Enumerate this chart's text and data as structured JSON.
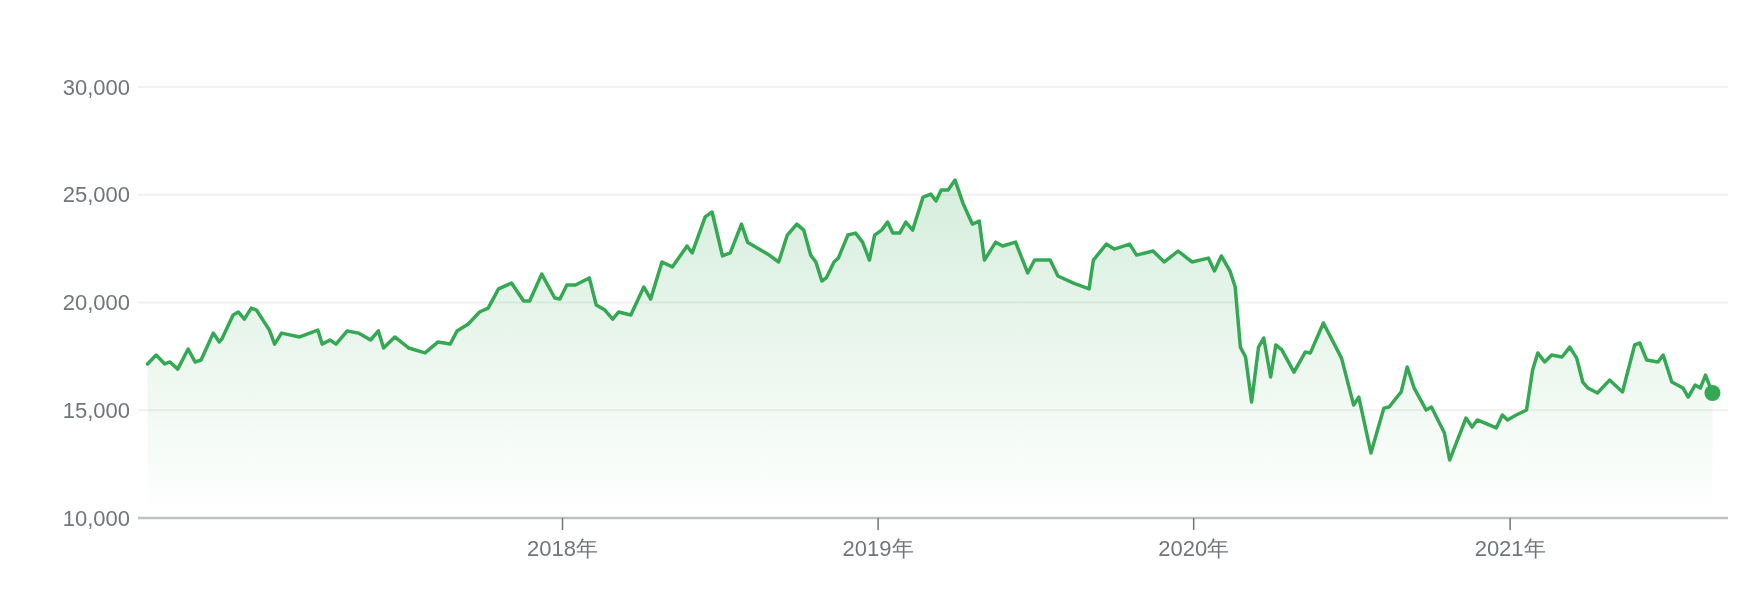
{
  "chart_data": {
    "type": "area",
    "color": "#34a853",
    "grid": "y",
    "marker": "none",
    "xlim": [
      "2016-08-28",
      "2021-09-10"
    ],
    "ylim": [
      10000,
      30000
    ],
    "yticks": [
      {
        "value": 10000,
        "label": "10,000"
      },
      {
        "value": 15000,
        "label": "15,000"
      },
      {
        "value": 20000,
        "label": "20,000"
      },
      {
        "value": 25000,
        "label": "25,000"
      },
      {
        "value": 30000,
        "label": "30,000"
      }
    ],
    "xticks": [
      {
        "value": "2018",
        "label": "2018年"
      },
      {
        "value": "2019",
        "label": "2019年"
      },
      {
        "value": "2020",
        "label": "2020年"
      },
      {
        "value": "2021",
        "label": "2021年"
      }
    ],
    "x": [
      "2016-09-08",
      "2016-09-18",
      "2016-09-28",
      "2016-10-04",
      "2016-10-13",
      "2016-10-25",
      "2016-11-02",
      "2016-11-09",
      "2016-11-23",
      "2016-11-30",
      "2016-12-03",
      "2016-12-16",
      "2016-12-22",
      "2016-12-29",
      "2017-01-06",
      "2017-01-12",
      "2017-01-27",
      "2017-02-02",
      "2017-02-10",
      "2017-03-03",
      "2017-03-24",
      "2017-03-29",
      "2017-04-07",
      "2017-04-14",
      "2017-04-27",
      "2017-05-10",
      "2017-05-24",
      "2017-06-02",
      "2017-06-08",
      "2017-06-21",
      "2017-07-07",
      "2017-07-26",
      "2017-08-10",
      "2017-08-24",
      "2017-09-01",
      "2017-09-14",
      "2017-09-27",
      "2017-10-07",
      "2017-10-19",
      "2017-11-03",
      "2017-11-17",
      "2017-11-24",
      "2017-12-08",
      "2017-12-23",
      "2017-12-29",
      "2018-01-06",
      "2018-01-16",
      "2018-02-01",
      "2018-02-09",
      "2018-02-19",
      "2018-02-28",
      "2018-03-07",
      "2018-03-21",
      "2018-04-05",
      "2018-04-13",
      "2018-04-26",
      "2018-05-08",
      "2018-05-25",
      "2018-05-31",
      "2018-06-15",
      "2018-06-23",
      "2018-07-05",
      "2018-07-14",
      "2018-07-27",
      "2018-08-03",
      "2018-08-28",
      "2018-09-08",
      "2018-09-18",
      "2018-09-29",
      "2018-10-07",
      "2018-10-15",
      "2018-10-21",
      "2018-10-28",
      "2018-11-02",
      "2018-11-11",
      "2018-11-16",
      "2018-11-27",
      "2018-12-06",
      "2018-12-14",
      "2018-12-22",
      "2018-12-28",
      "2019-01-05",
      "2019-01-12",
      "2019-01-18",
      "2019-01-26",
      "2019-02-02",
      "2019-02-10",
      "2019-02-22",
      "2019-03-03",
      "2019-03-09",
      "2019-03-15",
      "2019-03-23",
      "2019-03-31",
      "2019-04-09",
      "2019-04-20",
      "2019-04-28",
      "2019-05-04",
      "2019-05-17",
      "2019-05-25",
      "2019-06-09",
      "2019-06-23",
      "2019-07-01",
      "2019-07-19",
      "2019-07-28",
      "2019-08-15",
      "2019-09-02",
      "2019-09-07",
      "2019-09-22",
      "2019-10-01",
      "2019-10-19",
      "2019-10-27",
      "2019-11-15",
      "2019-11-28",
      "2019-12-14",
      "2019-12-30",
      "2020-01-18",
      "2020-01-25",
      "2020-02-02",
      "2020-02-12",
      "2020-02-18",
      "2020-02-24",
      "2020-03-01",
      "2020-03-08",
      "2020-03-16",
      "2020-03-22",
      "2020-03-30",
      "2020-04-05",
      "2020-04-12",
      "2020-04-26",
      "2020-05-09",
      "2020-05-15",
      "2020-05-30",
      "2020-06-20",
      "2020-07-04",
      "2020-07-10",
      "2020-07-24",
      "2020-08-08",
      "2020-08-14",
      "2020-08-28",
      "2020-09-04",
      "2020-09-12",
      "2020-09-26",
      "2020-10-02",
      "2020-10-17",
      "2020-10-23",
      "2020-11-11",
      "2020-11-18",
      "2020-11-24",
      "2020-12-16",
      "2020-12-23",
      "2020-12-29",
      "2021-01-08",
      "2021-01-20",
      "2021-01-27",
      "2021-02-02",
      "2021-02-10",
      "2021-02-18",
      "2021-03-02",
      "2021-03-11",
      "2021-03-19",
      "2021-03-26",
      "2021-04-01",
      "2021-04-12",
      "2021-04-26",
      "2021-05-11",
      "2021-05-25",
      "2021-05-31",
      "2021-06-08",
      "2021-06-21",
      "2021-06-27",
      "2021-07-07",
      "2021-07-20",
      "2021-07-26",
      "2021-08-03",
      "2021-08-09",
      "2021-08-15",
      "2021-08-23"
    ],
    "values": [
      17150,
      17560,
      17150,
      17240,
      16910,
      17840,
      17240,
      17330,
      18580,
      18170,
      18310,
      19420,
      19560,
      19230,
      19740,
      19650,
      18720,
      18070,
      18580,
      18400,
      18720,
      18070,
      18260,
      18070,
      18680,
      18580,
      18260,
      18680,
      17890,
      18400,
      17890,
      17660,
      18170,
      18070,
      18680,
      19000,
      19560,
      19740,
      20630,
      20900,
      20070,
      20070,
      21320,
      20210,
      20160,
      20810,
      20810,
      21140,
      19880,
      19650,
      19230,
      19560,
      19420,
      20720,
      20160,
      21880,
      21650,
      22620,
      22300,
      23970,
      24200,
      22160,
      22300,
      23640,
      22800,
      22200,
      21880,
      23130,
      23640,
      23360,
      22200,
      21880,
      21000,
      21140,
      21880,
      22060,
      23130,
      23220,
      22800,
      21970,
      23130,
      23360,
      23730,
      23220,
      23220,
      23730,
      23360,
      24890,
      25030,
      24710,
      25220,
      25220,
      25680,
      24620,
      23640,
      23780,
      21970,
      22800,
      22620,
      22800,
      21370,
      21970,
      21970,
      21230,
      20900,
      20630,
      21970,
      22710,
      22480,
      22710,
      22200,
      22390,
      21880,
      22390,
      21880,
      22060,
      21460,
      22160,
      21460,
      20720,
      17930,
      17470,
      15380,
      17930,
      18350,
      16540,
      18030,
      17800,
      16770,
      17700,
      17660,
      19050,
      17420,
      15240,
      15610,
      13020,
      15100,
      15150,
      15850,
      17010,
      16030,
      15010,
      15150,
      13940,
      12690,
      14640,
      14220,
      14550,
      14180,
      14780,
      14550,
      14780,
      15010,
      16870,
      17660,
      17240,
      17560,
      17470,
      17930,
      17420,
      16310,
      16030,
      15800,
      16400,
      15850,
      18030,
      18120,
      17330,
      17240,
      17560,
      16310,
      16030,
      15610,
      16170,
      16030,
      16630,
      15800
    ]
  }
}
